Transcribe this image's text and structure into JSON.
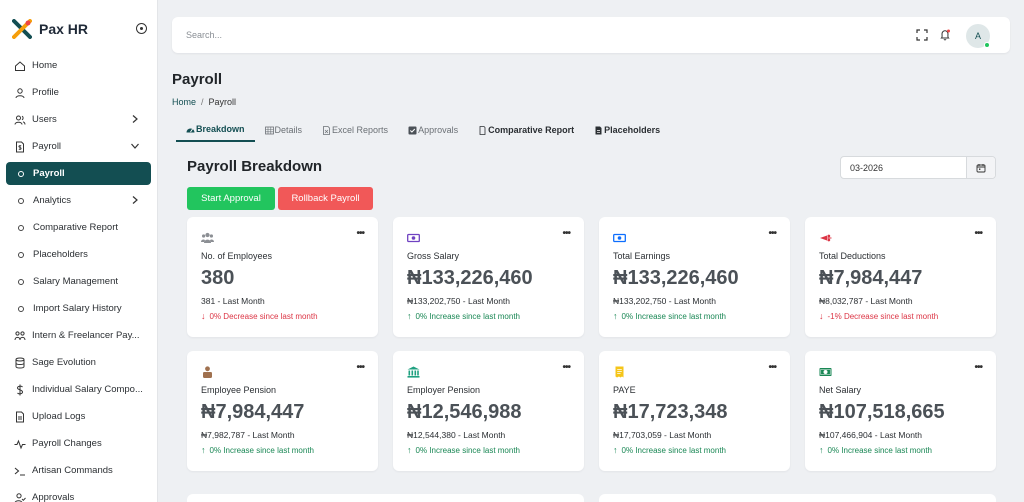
{
  "brand": {
    "title": "Pax HR",
    "accent": "#134e52"
  },
  "sidebar": {
    "items": [
      {
        "label": "Home",
        "icon": "home-icon"
      },
      {
        "label": "Profile",
        "icon": "user-icon"
      },
      {
        "label": "Users",
        "icon": "users-icon",
        "chevron": "right"
      },
      {
        "label": "Payroll",
        "icon": "document-icon",
        "chevron": "down"
      },
      {
        "label": "Payroll",
        "sub": true,
        "active": true
      },
      {
        "label": "Analytics",
        "sub": true,
        "chevron": "right"
      },
      {
        "label": "Comparative Report",
        "sub": true
      },
      {
        "label": "Placeholders",
        "sub": true
      },
      {
        "label": "Salary Management",
        "sub": true
      },
      {
        "label": "Import Salary History",
        "sub": true
      },
      {
        "label": "Intern & Freelancer Pay...",
        "icon": "people-icon"
      },
      {
        "label": "Sage Evolution",
        "icon": "database-icon"
      },
      {
        "label": "Individual Salary Compo...",
        "icon": "dollar-icon"
      },
      {
        "label": "Upload Logs",
        "icon": "file-icon"
      },
      {
        "label": "Payroll Changes",
        "icon": "activity-icon"
      },
      {
        "label": "Artisan Commands",
        "icon": "terminal-icon"
      },
      {
        "label": "Approvals",
        "icon": "user-check-icon"
      }
    ]
  },
  "topbar": {
    "search_placeholder": "Search...",
    "avatar_initial": "A"
  },
  "page": {
    "title": "Payroll"
  },
  "breadcrumb": {
    "home": "Home",
    "separator": "/",
    "current": "Payroll"
  },
  "tabs": [
    {
      "label": "Breakdown",
      "active": true
    },
    {
      "label": "Details"
    },
    {
      "label": "Excel Reports"
    },
    {
      "label": "Approvals"
    },
    {
      "label": "Comparative Report",
      "dark": true
    },
    {
      "label": "Placeholders",
      "dark": true
    }
  ],
  "section": {
    "title": "Payroll Breakdown",
    "month_value": "03-2026",
    "start_label": "Start Approval",
    "rollback_label": "Rollback Payroll"
  },
  "cards": [
    {
      "label": "No. of Employees",
      "value": "380",
      "last": "381 - Last Month",
      "trend": "0% Decrease since last month",
      "direction": "down",
      "icon": "employees-icon",
      "icon_color": "#8c8f94"
    },
    {
      "label": "Gross Salary",
      "value": "₦133,226,460",
      "last": "₦133,202,750 - Last Month",
      "trend": "0% Increase since last month",
      "direction": "up",
      "icon": "money-icon",
      "icon_color": "#6f42c1"
    },
    {
      "label": "Total Earnings",
      "value": "₦133,226,460",
      "last": "₦133,202,750 - Last Month",
      "trend": "0% Increase since last month",
      "direction": "up",
      "icon": "money-icon",
      "icon_color": "#0d6efd"
    },
    {
      "label": "Total Deductions",
      "value": "₦7,984,447",
      "last": "₦8,032,787 - Last Month",
      "trend": "-1% Decrease since last month",
      "direction": "down",
      "icon": "scissors-icon",
      "icon_color": "#dc3545"
    },
    {
      "label": "Employee Pension",
      "value": "₦7,984,447",
      "last": "₦7,982,787 - Last Month",
      "trend": "0% Increase since last month",
      "direction": "up",
      "icon": "person-icon",
      "icon_color": "#a0714f"
    },
    {
      "label": "Employer Pension",
      "value": "₦12,546,988",
      "last": "₦12,544,380 - Last Month",
      "trend": "0% Increase since last month",
      "direction": "up",
      "icon": "bank-icon",
      "icon_color": "#20a080"
    },
    {
      "label": "PAYE",
      "value": "₦17,723,348",
      "last": "₦17,703,059 - Last Month",
      "trend": "0% Increase since last month",
      "direction": "up",
      "icon": "receipt-icon",
      "icon_color": "#f5c518"
    },
    {
      "label": "Net Salary",
      "value": "₦107,518,665",
      "last": "₦107,466,904 - Last Month",
      "trend": "0% Increase since last month",
      "direction": "up",
      "icon": "cash-icon",
      "icon_color": "#198754"
    }
  ]
}
